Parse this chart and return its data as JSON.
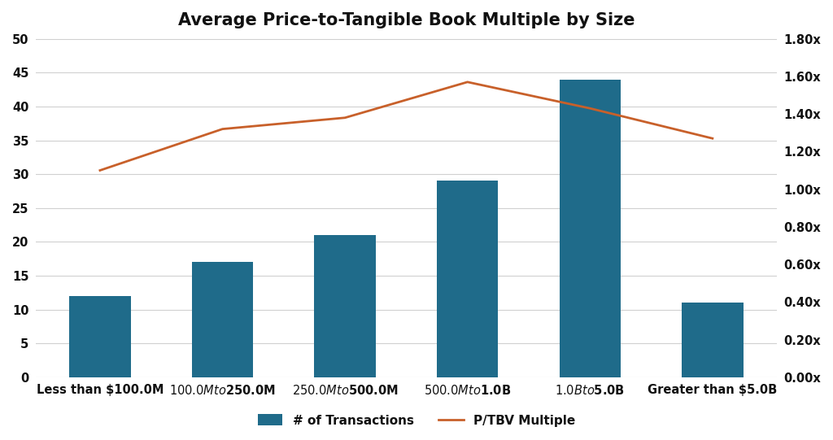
{
  "title": "Average Price-to-Tangible Book Multiple by Size",
  "categories": [
    "Less than $100.0M",
    "$100.0M to $250.0M",
    "$250.0M to $500.0M",
    "$500.0M to $1.0B",
    "$1.0B to $5.0B",
    "Greater than $5.0B"
  ],
  "bar_values": [
    12,
    17,
    21,
    29,
    44,
    11
  ],
  "line_values": [
    1.1,
    1.32,
    1.38,
    1.57,
    1.43,
    1.27
  ],
  "bar_color": "#1f6b8a",
  "line_color": "#c8602a",
  "bar_label": "# of Transactions",
  "line_label": "P/TBV Multiple",
  "left_ylim": [
    0,
    50
  ],
  "right_ylim": [
    0.0,
    1.8
  ],
  "left_yticks": [
    0,
    5,
    10,
    15,
    20,
    25,
    30,
    35,
    40,
    45,
    50
  ],
  "right_yticks": [
    0.0,
    0.2,
    0.4,
    0.6,
    0.8,
    1.0,
    1.2,
    1.4,
    1.6,
    1.8
  ],
  "background_color": "#ffffff",
  "title_fontsize": 15,
  "tick_fontsize": 10.5,
  "legend_fontsize": 11,
  "grid_color": "#d0d0d0",
  "label_color": "#111111"
}
